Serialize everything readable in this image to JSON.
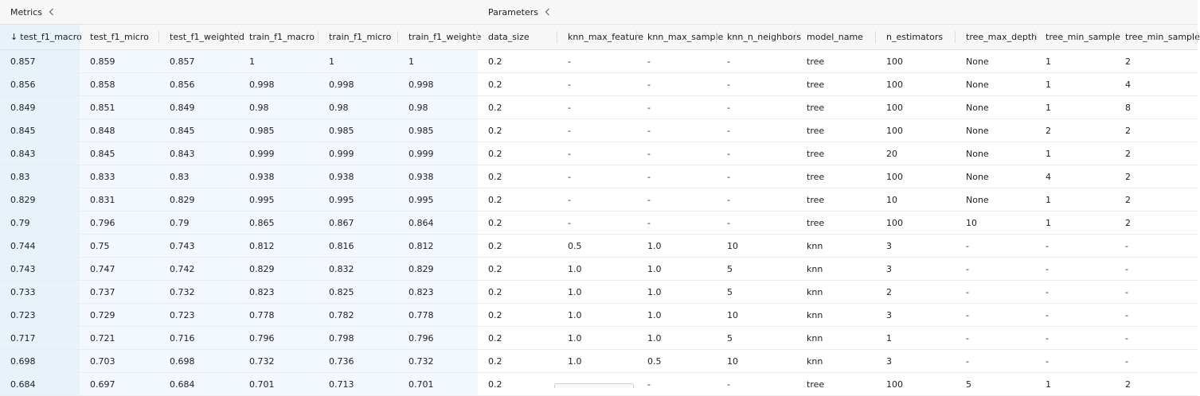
{
  "groups": [
    {
      "label": "Metrics"
    },
    {
      "label": "Parameters"
    }
  ],
  "sort_indicator": "↓",
  "columns": [
    "test_f1_macro",
    "test_f1_micro",
    "test_f1_weighted",
    "train_f1_macro",
    "train_f1_micro",
    "train_f1_weighte",
    "data_size",
    "knn_max_feature",
    "knn_max_sample",
    "knn_n_neighbors",
    "model_name",
    "n_estimators",
    "tree_max_depth",
    "tree_min_sample",
    "tree_min_sample"
  ],
  "rows": [
    [
      "0.857",
      "0.859",
      "0.857",
      "1",
      "1",
      "1",
      "0.2",
      "-",
      "-",
      "-",
      "tree",
      "100",
      "None",
      "1",
      "2"
    ],
    [
      "0.856",
      "0.858",
      "0.856",
      "0.998",
      "0.998",
      "0.998",
      "0.2",
      "-",
      "-",
      "-",
      "tree",
      "100",
      "None",
      "1",
      "4"
    ],
    [
      "0.849",
      "0.851",
      "0.849",
      "0.98",
      "0.98",
      "0.98",
      "0.2",
      "-",
      "-",
      "-",
      "tree",
      "100",
      "None",
      "1",
      "8"
    ],
    [
      "0.845",
      "0.848",
      "0.845",
      "0.985",
      "0.985",
      "0.985",
      "0.2",
      "-",
      "-",
      "-",
      "tree",
      "100",
      "None",
      "2",
      "2"
    ],
    [
      "0.843",
      "0.845",
      "0.843",
      "0.999",
      "0.999",
      "0.999",
      "0.2",
      "-",
      "-",
      "-",
      "tree",
      "20",
      "None",
      "1",
      "2"
    ],
    [
      "0.83",
      "0.833",
      "0.83",
      "0.938",
      "0.938",
      "0.938",
      "0.2",
      "-",
      "-",
      "-",
      "tree",
      "100",
      "None",
      "4",
      "2"
    ],
    [
      "0.829",
      "0.831",
      "0.829",
      "0.995",
      "0.995",
      "0.995",
      "0.2",
      "-",
      "-",
      "-",
      "tree",
      "10",
      "None",
      "1",
      "2"
    ],
    [
      "0.79",
      "0.796",
      "0.79",
      "0.865",
      "0.867",
      "0.864",
      "0.2",
      "-",
      "-",
      "-",
      "tree",
      "100",
      "10",
      "1",
      "2"
    ],
    [
      "0.744",
      "0.75",
      "0.743",
      "0.812",
      "0.816",
      "0.812",
      "0.2",
      "0.5",
      "1.0",
      "10",
      "knn",
      "3",
      "-",
      "-",
      "-"
    ],
    [
      "0.743",
      "0.747",
      "0.742",
      "0.829",
      "0.832",
      "0.829",
      "0.2",
      "1.0",
      "1.0",
      "5",
      "knn",
      "3",
      "-",
      "-",
      "-"
    ],
    [
      "0.733",
      "0.737",
      "0.732",
      "0.823",
      "0.825",
      "0.823",
      "0.2",
      "1.0",
      "1.0",
      "5",
      "knn",
      "2",
      "-",
      "-",
      "-"
    ],
    [
      "0.723",
      "0.729",
      "0.723",
      "0.778",
      "0.782",
      "0.778",
      "0.2",
      "1.0",
      "1.0",
      "10",
      "knn",
      "3",
      "-",
      "-",
      "-"
    ],
    [
      "0.717",
      "0.721",
      "0.716",
      "0.796",
      "0.798",
      "0.796",
      "0.2",
      "1.0",
      "1.0",
      "5",
      "knn",
      "1",
      "-",
      "-",
      "-"
    ],
    [
      "0.698",
      "0.703",
      "0.698",
      "0.732",
      "0.736",
      "0.732",
      "0.2",
      "1.0",
      "0.5",
      "10",
      "knn",
      "3",
      "-",
      "-",
      "-"
    ],
    [
      "0.684",
      "0.697",
      "0.684",
      "0.701",
      "0.713",
      "0.701",
      "0.2",
      "-",
      "-",
      "-",
      "tree",
      "100",
      "5",
      "1",
      "2"
    ]
  ]
}
